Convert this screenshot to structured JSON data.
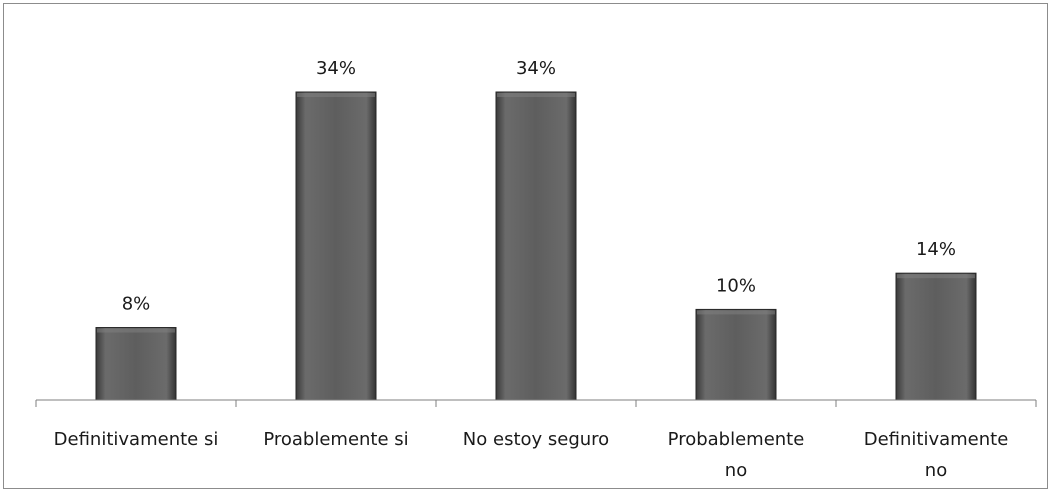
{
  "chart_data": {
    "type": "bar",
    "categories": [
      [
        "Definitivamente si"
      ],
      [
        "Proablemente si"
      ],
      [
        "No estoy seguro"
      ],
      [
        "Probablemente",
        "no"
      ],
      [
        "Definitivamente",
        "no"
      ]
    ],
    "values": [
      8,
      34,
      34,
      10,
      14
    ],
    "data_labels": [
      "8%",
      "34%",
      "34%",
      "10%",
      "14%"
    ],
    "unit": "%",
    "title": "",
    "xlabel": "",
    "ylabel": "",
    "ylim": [
      0,
      34
    ],
    "grid": false,
    "legend": "none",
    "colors": {
      "bar": "#595959",
      "bar_edge": "#262626",
      "axis": "#7f7f7f"
    }
  }
}
